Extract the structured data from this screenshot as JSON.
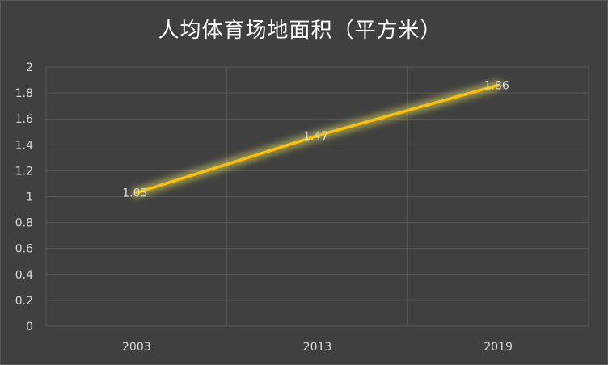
{
  "chart_data": {
    "type": "line",
    "title": "人均体育场地面积（平方米）",
    "categories": [
      "2003",
      "2013",
      "2019"
    ],
    "series": [
      {
        "values": [
          1.03,
          1.47,
          1.86
        ]
      }
    ],
    "data_labels": [
      "1.03",
      "1.47",
      "1.86"
    ],
    "ylim": [
      0,
      2
    ],
    "y_ticks": [
      "0",
      "0.2",
      "0.4",
      "0.6",
      "0.8",
      "1",
      "1.2",
      "1.4",
      "1.6",
      "1.8",
      "2"
    ],
    "grid": true,
    "colors": {
      "background": "#404040",
      "gridline": "#595959",
      "line": "#ffc000",
      "glow": "#ffff66",
      "text": "#d9d9d9",
      "title": "#ffffff"
    }
  }
}
